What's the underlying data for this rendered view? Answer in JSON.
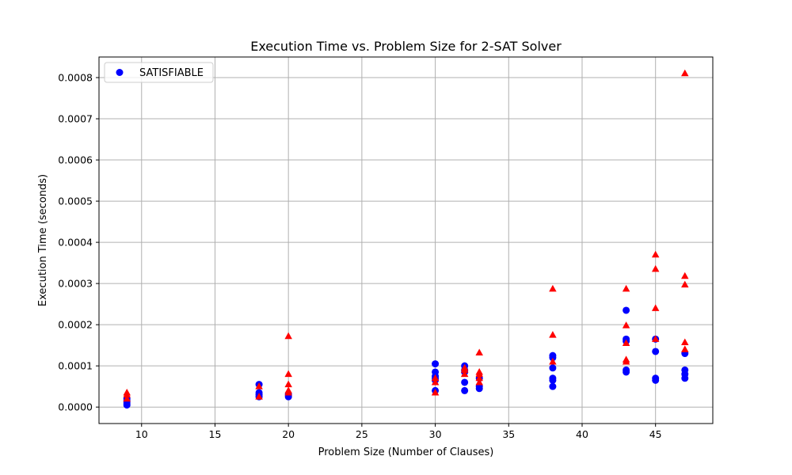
{
  "chart_data": {
    "type": "scatter",
    "title": "Execution Time vs. Problem Size for 2-SAT Solver",
    "xlabel": "Problem Size (Number of Clauses)",
    "ylabel": "Execution Time (seconds)",
    "xlim": [
      7.1,
      48.9
    ],
    "ylim": [
      -4e-05,
      0.00085
    ],
    "xticks": [
      10,
      15,
      20,
      25,
      30,
      35,
      40,
      45
    ],
    "xtick_labels": [
      "10",
      "15",
      "20",
      "25",
      "30",
      "35",
      "40",
      "45"
    ],
    "yticks": [
      0,
      0.0001,
      0.0002,
      0.0003,
      0.0004,
      0.0005,
      0.0006,
      0.0007,
      0.0008
    ],
    "ytick_labels": [
      "0.0000",
      "0.0001",
      "0.0002",
      "0.0003",
      "0.0004",
      "0.0005",
      "0.0006",
      "0.0007",
      "0.0008"
    ],
    "grid": true,
    "legend_position": "top-left",
    "series": [
      {
        "name": "SATISFIABLE",
        "marker": "circle",
        "color": "#0000ff",
        "points": [
          [
            9,
            5e-06
          ],
          [
            9,
            1e-05
          ],
          [
            9,
            1.5e-05
          ],
          [
            9,
            2e-05
          ],
          [
            18,
            2.5e-05
          ],
          [
            18,
            3e-05
          ],
          [
            18,
            3.5e-05
          ],
          [
            18,
            5.5e-05
          ],
          [
            20,
            2.5e-05
          ],
          [
            20,
            3e-05
          ],
          [
            30,
            4e-05
          ],
          [
            30,
            6.5e-05
          ],
          [
            30,
            7e-05
          ],
          [
            30,
            7.5e-05
          ],
          [
            30,
            8.5e-05
          ],
          [
            30,
            0.000105
          ],
          [
            32,
            4e-05
          ],
          [
            32,
            6e-05
          ],
          [
            32,
            8.5e-05
          ],
          [
            32,
            9e-05
          ],
          [
            32,
            0.0001
          ],
          [
            33,
            4.5e-05
          ],
          [
            33,
            5e-05
          ],
          [
            33,
            7e-05
          ],
          [
            38,
            5e-05
          ],
          [
            38,
            6.5e-05
          ],
          [
            38,
            7e-05
          ],
          [
            38,
            9.5e-05
          ],
          [
            38,
            0.00012
          ],
          [
            38,
            0.000125
          ],
          [
            43,
            8.5e-05
          ],
          [
            43,
            9e-05
          ],
          [
            43,
            0.00016
          ],
          [
            43,
            0.000165
          ],
          [
            43,
            0.000235
          ],
          [
            45,
            6.5e-05
          ],
          [
            45,
            7e-05
          ],
          [
            45,
            0.000135
          ],
          [
            45,
            0.000165
          ],
          [
            47,
            7e-05
          ],
          [
            47,
            8e-05
          ],
          [
            47,
            9e-05
          ],
          [
            47,
            0.00013
          ]
        ]
      },
      {
        "name": "",
        "marker": "triangle",
        "color": "#ff0000",
        "points": [
          [
            9,
            2e-05
          ],
          [
            9,
            3e-05
          ],
          [
            9,
            3.5e-05
          ],
          [
            18,
            2.5e-05
          ],
          [
            18,
            5e-05
          ],
          [
            20,
            3.5e-05
          ],
          [
            20,
            4e-05
          ],
          [
            20,
            5.5e-05
          ],
          [
            20,
            8e-05
          ],
          [
            20,
            0.000172
          ],
          [
            30,
            3.5e-05
          ],
          [
            30,
            6e-05
          ],
          [
            30,
            7e-05
          ],
          [
            32,
            8e-05
          ],
          [
            32,
            9e-05
          ],
          [
            32,
            9.5e-05
          ],
          [
            33,
            6e-05
          ],
          [
            33,
            7e-05
          ],
          [
            33,
            8e-05
          ],
          [
            33,
            8.5e-05
          ],
          [
            33,
            0.000132
          ],
          [
            38,
            0.00011
          ],
          [
            38,
            0.000175
          ],
          [
            38,
            0.000287
          ],
          [
            43,
            0.00011
          ],
          [
            43,
            0.000115
          ],
          [
            43,
            0.000155
          ],
          [
            43,
            0.000198
          ],
          [
            43,
            0.000287
          ],
          [
            45,
            0.000165
          ],
          [
            45,
            0.00024
          ],
          [
            45,
            0.000335
          ],
          [
            45,
            0.00037
          ],
          [
            47,
            0.00014
          ],
          [
            47,
            0.000157
          ],
          [
            47,
            0.000297
          ],
          [
            47,
            0.000318
          ],
          [
            47,
            0.00081
          ]
        ]
      }
    ]
  }
}
